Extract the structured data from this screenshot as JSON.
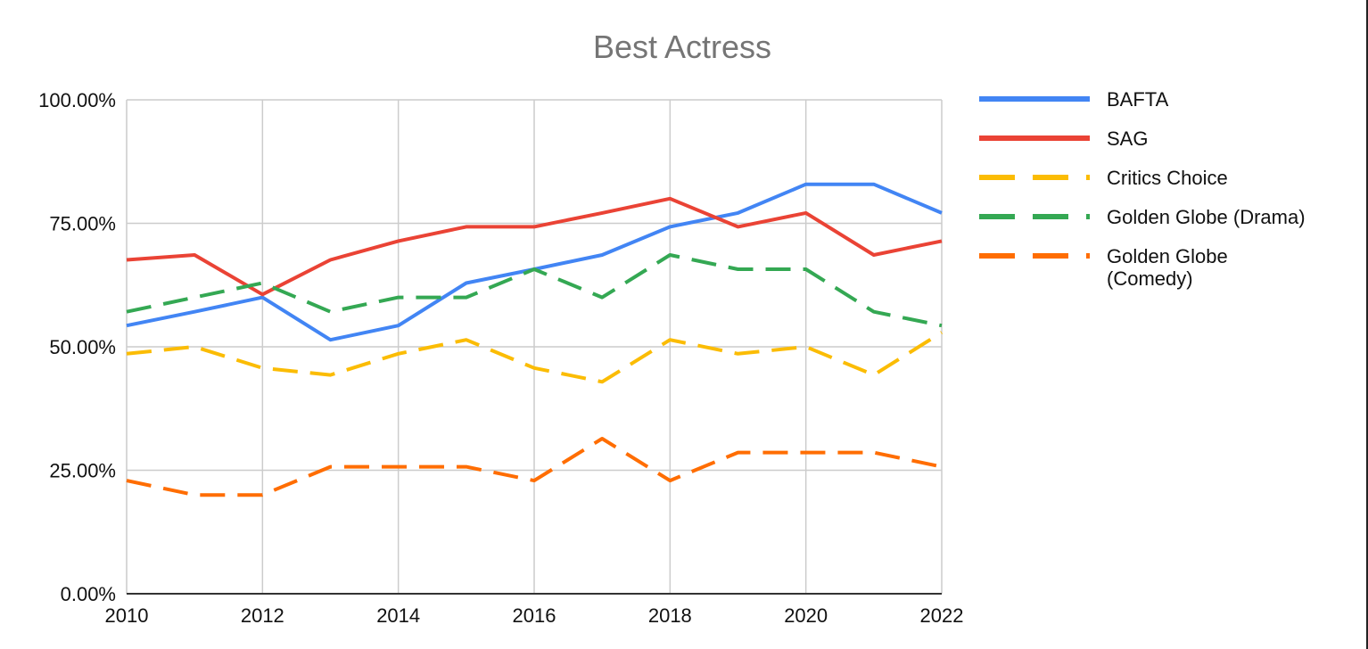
{
  "chart_data": {
    "type": "line",
    "title": "Best Actress",
    "xlabel": "",
    "ylabel": "",
    "x": [
      2010,
      2011,
      2012,
      2013,
      2014,
      2015,
      2016,
      2017,
      2018,
      2019,
      2020,
      2021,
      2022
    ],
    "xticks": [
      "2010",
      "2012",
      "2014",
      "2016",
      "2018",
      "2020",
      "2022"
    ],
    "xlim": [
      2010,
      2022
    ],
    "ylim": [
      0,
      1
    ],
    "yticks": [
      "0.00%",
      "25.00%",
      "50.00%",
      "75.00%",
      "100.00%"
    ],
    "grid": true,
    "legend_position": "right",
    "series": [
      {
        "name": "BAFTA",
        "color": "#4285F4",
        "dashed": false,
        "values": [
          0.543,
          0.571,
          0.6,
          0.514,
          0.543,
          0.629,
          0.657,
          0.686,
          0.743,
          0.771,
          0.829,
          0.829,
          0.771
        ]
      },
      {
        "name": "SAG",
        "color": "#EA4335",
        "dashed": false,
        "values": [
          0.676,
          0.686,
          0.606,
          0.676,
          0.714,
          0.743,
          0.743,
          0.771,
          0.8,
          0.743,
          0.771,
          0.686,
          0.714
        ]
      },
      {
        "name": "Critics Choice",
        "color": "#FBBC04",
        "dashed": true,
        "values": [
          0.486,
          0.5,
          0.457,
          0.443,
          0.486,
          0.514,
          0.457,
          0.429,
          0.514,
          0.486,
          0.5,
          0.443,
          0.529
        ]
      },
      {
        "name": "Golden Globe (Drama)",
        "color": "#34A853",
        "dashed": true,
        "values": [
          0.571,
          0.6,
          0.629,
          0.571,
          0.6,
          0.6,
          0.657,
          0.6,
          0.686,
          0.657,
          0.657,
          0.571,
          0.543
        ]
      },
      {
        "name": "Golden Globe (Comedy)",
        "color": "#FF6D01",
        "dashed": true,
        "values": [
          0.229,
          0.2,
          0.2,
          0.257,
          0.257,
          0.257,
          0.229,
          0.314,
          0.229,
          0.286,
          0.286,
          0.286,
          0.257
        ]
      }
    ]
  }
}
